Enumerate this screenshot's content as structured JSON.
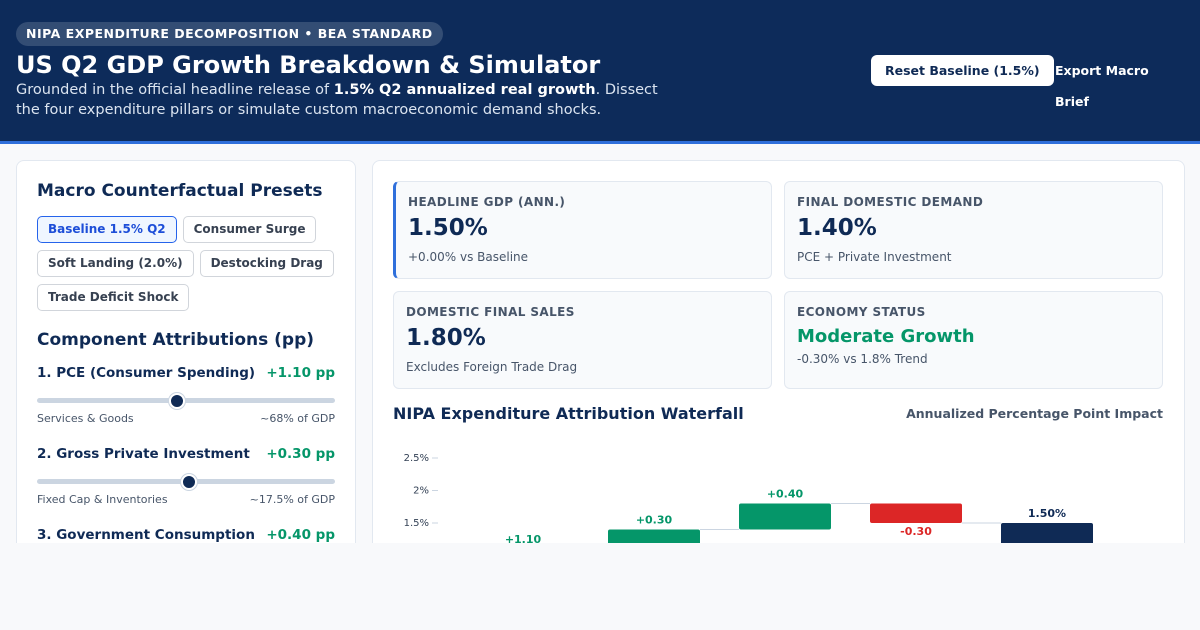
{
  "header": {
    "badge": "NIPA EXPENDITURE DECOMPOSITION • BEA STANDARD",
    "title": "US Q2 GDP Growth Breakdown & Simulator",
    "subtitle_before": "Grounded in the official headline release of ",
    "subtitle_strong": "1.5% Q2 annualized real growth",
    "subtitle_after": ". Dissect the four expenditure pillars or simulate custom macroeconomic demand shocks.",
    "buttons": [
      "Reset Baseline (1.5%)",
      "Export Macro Brief"
    ]
  },
  "presets": {
    "title": "Macro Counterfactual Presets",
    "items": [
      "Baseline 1.5% Q2",
      "Consumer Surge",
      "Soft Landing (2.0%)",
      "Destocking Drag",
      "Trade Deficit Shock"
    ]
  },
  "components": {
    "title": "Component Attributions (pp)",
    "items": [
      {
        "name": "1. PCE (Consumer Spending)",
        "value": "+1.10 pp",
        "left": "Services & Goods",
        "right": "~68% of GDP"
      },
      {
        "name": "2. Gross Private Investment",
        "value": "+0.30 pp",
        "left": "Fixed Cap & Inventories",
        "right": "~17.5% of GDP"
      },
      {
        "name": "3. Government Consumption",
        "value": "+0.40 pp"
      }
    ]
  },
  "kpis": [
    {
      "label": "HEADLINE GDP (ANN.)",
      "value": "1.50%",
      "note": "+0.00% vs Baseline"
    },
    {
      "label": "FINAL DOMESTIC DEMAND",
      "value": "1.40%",
      "note": "PCE + Private Investment"
    },
    {
      "label": "DOMESTIC FINAL SALES",
      "value": "1.80%",
      "note": "Excludes Foreign Trade Drag"
    },
    {
      "label": "ECONOMY STATUS",
      "value": "Moderate Growth",
      "note": "-0.30% vs 1.8% Trend"
    }
  ],
  "chart_data": {
    "type": "waterfall",
    "title": "NIPA Expenditure Attribution Waterfall",
    "subtitle": "Annualized Percentage Point Impact",
    "values": [
      1.1,
      0.3,
      0.4,
      -0.3
    ],
    "value_labels": [
      "+1.10",
      "+0.30",
      "+0.40",
      "-0.30"
    ],
    "total": 1.5,
    "total_label": "1.50%",
    "colors": {
      "increase": "#059669",
      "decrease": "#dc2626",
      "total": "#0f2a55"
    },
    "ylim": [
      0,
      2.7
    ],
    "yticks": [
      {
        "value": 2.5,
        "label": "2.5%"
      },
      {
        "value": 2,
        "label": "2%"
      },
      {
        "value": 1.5,
        "label": "1.5%"
      }
    ]
  }
}
